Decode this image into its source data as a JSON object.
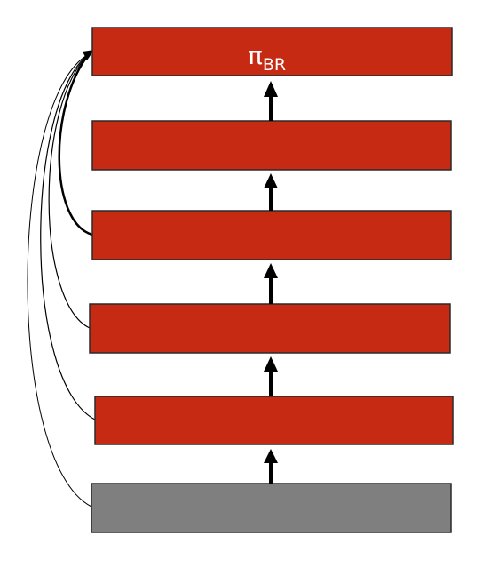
{
  "diagram": {
    "output_symbol": "π",
    "output_subscript": "BR",
    "layer_count": 6,
    "colors": {
      "hidden_layer": "#c62a12",
      "input_layer": "#7f7f7f",
      "arrow": "#000000"
    }
  }
}
